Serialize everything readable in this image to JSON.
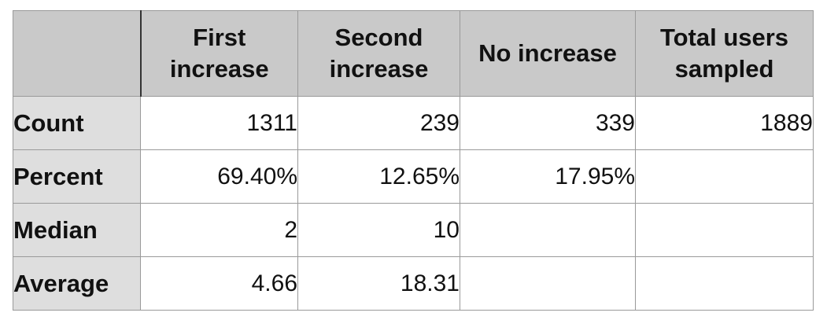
{
  "chart_data": {
    "type": "table",
    "columns": [
      "",
      "First increase",
      "Second increase",
      "No increase",
      "Total users sampled"
    ],
    "rows": [
      {
        "label": "Count",
        "cells": [
          "1311",
          "239",
          "339",
          "1889"
        ]
      },
      {
        "label": "Percent",
        "cells": [
          "69.40%",
          "12.65%",
          "17.95%",
          ""
        ]
      },
      {
        "label": "Median",
        "cells": [
          "2",
          "10",
          "",
          ""
        ]
      },
      {
        "label": "Average",
        "cells": [
          "4.66",
          "18.31",
          "",
          ""
        ]
      }
    ],
    "values": {
      "Count": {
        "First increase": 1311,
        "Second increase": 239,
        "No increase": 339,
        "Total users sampled": 1889
      },
      "Percent": {
        "First increase": 69.4,
        "Second increase": 12.65,
        "No increase": 17.95
      },
      "Median": {
        "First increase": 2,
        "Second increase": 10
      },
      "Average": {
        "First increase": 4.66,
        "Second increase": 18.31
      }
    }
  }
}
